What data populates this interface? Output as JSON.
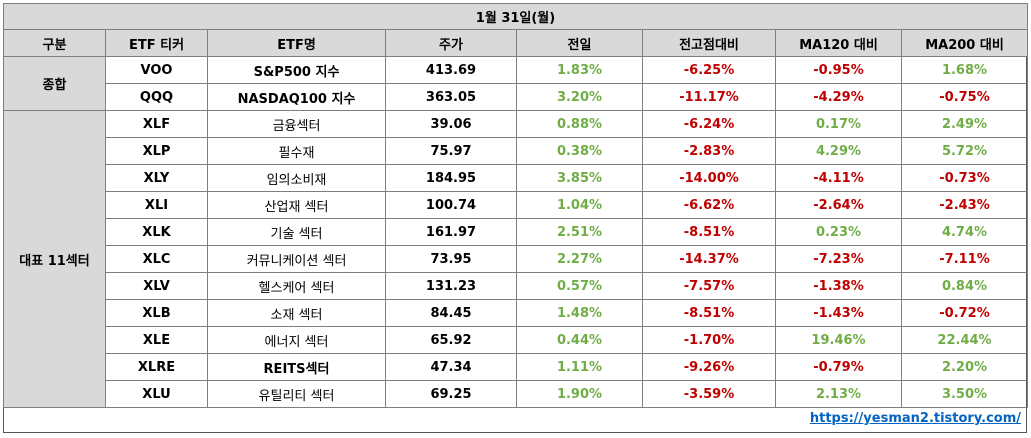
{
  "title": "1월 31일(월)",
  "headers": [
    "구분",
    "ETF 티커",
    "ETF명",
    "주가",
    "전일",
    "전고점대비",
    "MA120 대비",
    "MA200 대비"
  ],
  "groups": [
    {
      "label": "종합",
      "rows": [
        {
          "ticker": "VOO",
          "name": "S&P500 지수",
          "name_bold": true,
          "price": "413.69",
          "prev": "1.83%",
          "peak": "-6.25%",
          "ma120": "-0.95%",
          "ma200": "1.68%"
        },
        {
          "ticker": "QQQ",
          "name": "NASDAQ100 지수",
          "name_bold": true,
          "price": "363.05",
          "prev": "3.20%",
          "peak": "-11.17%",
          "ma120": "-4.29%",
          "ma200": "-0.75%"
        }
      ]
    },
    {
      "label": "대표 11섹터",
      "rows": [
        {
          "ticker": "XLF",
          "name": "금융섹터",
          "price": "39.06",
          "prev": "0.88%",
          "peak": "-6.24%",
          "ma120": "0.17%",
          "ma200": "2.49%"
        },
        {
          "ticker": "XLP",
          "name": "필수재",
          "price": "75.97",
          "prev": "0.38%",
          "peak": "-2.83%",
          "ma120": "4.29%",
          "ma200": "5.72%"
        },
        {
          "ticker": "XLY",
          "name": "임의소비재",
          "price": "184.95",
          "prev": "3.85%",
          "peak": "-14.00%",
          "ma120": "-4.11%",
          "ma200": "-0.73%"
        },
        {
          "ticker": "XLI",
          "name": "산업재 섹터",
          "price": "100.74",
          "prev": "1.04%",
          "peak": "-6.62%",
          "ma120": "-2.64%",
          "ma200": "-2.43%"
        },
        {
          "ticker": "XLK",
          "name": "기술 섹터",
          "price": "161.97",
          "prev": "2.51%",
          "peak": "-8.51%",
          "ma120": "0.23%",
          "ma200": "4.74%"
        },
        {
          "ticker": "XLC",
          "name": "커뮤니케이션 섹터",
          "price": "73.95",
          "prev": "2.27%",
          "peak": "-14.37%",
          "ma120": "-7.23%",
          "ma200": "-7.11%"
        },
        {
          "ticker": "XLV",
          "name": "헬스케어 섹터",
          "price": "131.23",
          "prev": "0.57%",
          "peak": "-7.57%",
          "ma120": "-1.38%",
          "ma200": "0.84%"
        },
        {
          "ticker": "XLB",
          "name": "소재 섹터",
          "price": "84.45",
          "prev": "1.48%",
          "peak": "-8.51%",
          "ma120": "-1.43%",
          "ma200": "-0.72%"
        },
        {
          "ticker": "XLE",
          "name": "에너지 섹터",
          "price": "65.92",
          "prev": "0.44%",
          "peak": "-1.70%",
          "ma120": "19.46%",
          "ma200": "22.44%"
        },
        {
          "ticker": "XLRE",
          "name": "REITS섹터",
          "name_bold": true,
          "price": "47.34",
          "prev": "1.11%",
          "peak": "-9.26%",
          "ma120": "-0.79%",
          "ma200": "2.20%"
        },
        {
          "ticker": "XLU",
          "name": "유틸리티 섹터",
          "price": "69.25",
          "prev": "1.90%",
          "peak": "-3.59%",
          "ma120": "2.13%",
          "ma200": "3.50%"
        }
      ]
    }
  ],
  "footer_link": "https://yesman2.tistory.com/",
  "colors": {
    "positive": "#70ad47",
    "negative": "#c00000",
    "header_bg": "#d9d9d9"
  }
}
